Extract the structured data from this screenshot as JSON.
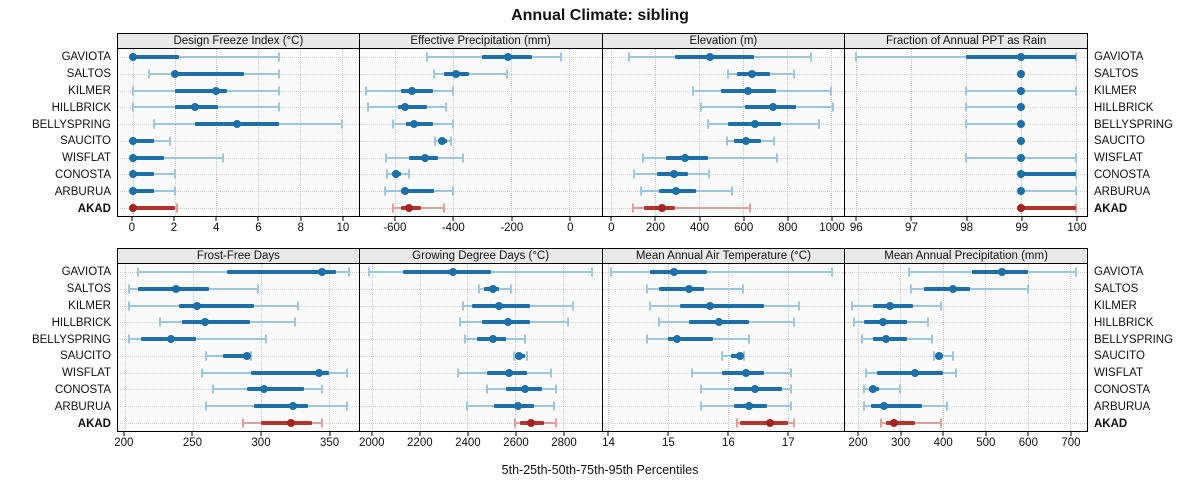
{
  "title": "Annual Climate: sibling",
  "footer": "5th-25th-50th-75th-95th Percentiles",
  "sites": [
    "GAVIOTA",
    "SALTOS",
    "KILMER",
    "HILLBRICK",
    "BELLYSPRING",
    "SAUCITO",
    "WISFLAT",
    "CONOSTA",
    "ARBURUA",
    "AKAD"
  ],
  "highlight_site": "AKAD",
  "colors": {
    "blue": "#1d6fa8",
    "blue_light": "#9cc6e2",
    "red": "#b5332d",
    "red_light": "#dfa09c",
    "red_dot": "#a32521",
    "grid": "#c9c9c9",
    "panel_bg": "#fafafa",
    "header_bg": "#e9e9e9",
    "border": "#000000"
  },
  "percentile_order": [
    "p5",
    "p25",
    "p50",
    "p75",
    "p95"
  ],
  "chart_data": [
    {
      "type": "dot-whisker",
      "title": "Design Freeze Index (°C)",
      "row": 0,
      "ticks": [
        0,
        2,
        4,
        6,
        8,
        10
      ],
      "xmin": -0.7,
      "xmax": 10.8,
      "values": {
        "GAVIOTA": [
          0,
          0,
          0,
          2.2,
          7
        ],
        "SALTOS": [
          0.8,
          1.9,
          2,
          5.3,
          7
        ],
        "KILMER": [
          0,
          2,
          4,
          4.5,
          7
        ],
        "HILLBRICK": [
          0,
          2,
          3,
          4.1,
          7
        ],
        "BELLYSPRING": [
          1,
          3,
          5,
          7,
          10
        ],
        "SAUCITO": [
          0,
          0,
          0,
          1,
          1.8
        ],
        "WISFLAT": [
          0,
          0,
          0,
          1.5,
          4.3
        ],
        "CONOSTA": [
          0,
          0,
          0,
          1,
          2
        ],
        "ARBURUA": [
          0,
          0,
          0,
          1,
          2
        ],
        "AKAD": [
          0,
          0,
          0,
          2,
          2.1
        ]
      }
    },
    {
      "type": "dot-whisker",
      "title": "Effective Precipitation (mm)",
      "row": 0,
      "ticks": [
        -600,
        -400,
        -200,
        0
      ],
      "xmin": -720,
      "xmax": 110,
      "values": {
        "GAVIOTA": [
          -490,
          -300,
          -210,
          -130,
          -30
        ],
        "SALTOS": [
          -465,
          -430,
          -390,
          -345,
          -215
        ],
        "KILMER": [
          -700,
          -580,
          -540,
          -470,
          -400
        ],
        "HILLBRICK": [
          -690,
          -590,
          -565,
          -490,
          -425
        ],
        "BELLYSPRING": [
          -605,
          -560,
          -535,
          -470,
          -400
        ],
        "SAUCITO": [
          -460,
          -448,
          -437,
          -420,
          -405
        ],
        "WISFLAT": [
          -630,
          -550,
          -495,
          -450,
          -365
        ],
        "CONOSTA": [
          -625,
          -610,
          -595,
          -580,
          -550
        ],
        "ARBURUA": [
          -635,
          -580,
          -565,
          -465,
          -400
        ],
        "AKAD": [
          -605,
          -580,
          -550,
          -510,
          -430
        ]
      }
    },
    {
      "type": "dot-whisker",
      "title": "Elevation (m)",
      "row": 0,
      "ticks": [
        0,
        200,
        400,
        600,
        800,
        1000
      ],
      "xmin": -40,
      "xmax": 1060,
      "values": {
        "GAVIOTA": [
          80,
          290,
          450,
          650,
          910
        ],
        "SALTOS": [
          530,
          570,
          640,
          720,
          830
        ],
        "KILMER": [
          370,
          500,
          620,
          750,
          1000
        ],
        "HILLBRICK": [
          410,
          610,
          735,
          840,
          1010
        ],
        "BELLYSPRING": [
          440,
          530,
          655,
          770,
          945
        ],
        "SAUCITO": [
          525,
          560,
          615,
          680,
          740
        ],
        "WISFLAT": [
          145,
          250,
          335,
          440,
          755
        ],
        "CONOSTA": [
          105,
          210,
          285,
          350,
          445
        ],
        "ARBURUA": [
          135,
          215,
          295,
          385,
          550
        ],
        "AKAD": [
          100,
          150,
          230,
          290,
          630
        ]
      }
    },
    {
      "type": "dot-whisker",
      "title": "Fraction of Annual PPT as Rain",
      "row": 0,
      "ticks": [
        96,
        97,
        98,
        99,
        100
      ],
      "xmin": 95.8,
      "xmax": 100.2,
      "values": {
        "GAVIOTA": [
          96,
          98,
          99,
          100,
          100
        ],
        "SALTOS": [
          99,
          99,
          99,
          99,
          99
        ],
        "KILMER": [
          98,
          99,
          99,
          99,
          100
        ],
        "HILLBRICK": [
          98,
          99,
          99,
          99,
          99
        ],
        "BELLYSPRING": [
          98,
          99,
          99,
          99,
          99
        ],
        "SAUCITO": [
          99,
          99,
          99,
          99,
          99
        ],
        "WISFLAT": [
          98,
          99,
          99,
          99,
          100
        ],
        "CONOSTA": [
          99,
          99,
          99,
          100,
          100
        ],
        "ARBURUA": [
          99,
          99,
          99,
          99,
          100
        ],
        "AKAD": [
          99,
          99,
          99,
          100,
          100
        ]
      }
    },
    {
      "type": "dot-whisker",
      "title": "Frost-Free Days",
      "row": 1,
      "ticks": [
        200,
        250,
        300,
        350
      ],
      "xmin": 195,
      "xmax": 372,
      "values": {
        "GAVIOTA": [
          210,
          275,
          345,
          355,
          365
        ],
        "SALTOS": [
          203,
          210,
          238,
          262,
          298
        ],
        "KILMER": [
          203,
          240,
          253,
          295,
          327
        ],
        "HILLBRICK": [
          226,
          242,
          259,
          292,
          325
        ],
        "BELLYSPRING": [
          203,
          212,
          234,
          252,
          304
        ],
        "SAUCITO": [
          260,
          272,
          290,
          292,
          293
        ],
        "WISFLAT": [
          257,
          293,
          343,
          350,
          363
        ],
        "CONOSTA": [
          265,
          290,
          302,
          332,
          345
        ],
        "ARBURUA": [
          260,
          295,
          324,
          335,
          363
        ],
        "AKAD": [
          287,
          300,
          322,
          338,
          345
        ]
      }
    },
    {
      "type": "dot-whisker",
      "title": "Growing Degree Days (°C)",
      "row": 1,
      "ticks": [
        2000,
        2200,
        2400,
        2600,
        2800
      ],
      "xmin": 1950,
      "xmax": 2960,
      "values": {
        "GAVIOTA": [
          1990,
          2130,
          2340,
          2500,
          2920
        ],
        "SALTOS": [
          2450,
          2470,
          2505,
          2530,
          2580
        ],
        "KILMER": [
          2380,
          2420,
          2530,
          2660,
          2840
        ],
        "HILLBRICK": [
          2370,
          2460,
          2570,
          2660,
          2820
        ],
        "BELLYSPRING": [
          2390,
          2440,
          2505,
          2560,
          2640
        ],
        "SAUCITO": [
          2595,
          2600,
          2615,
          2640,
          2650
        ],
        "WISFLAT": [
          2360,
          2480,
          2575,
          2650,
          2750
        ],
        "CONOSTA": [
          2480,
          2560,
          2640,
          2710,
          2770
        ],
        "ARBURUA": [
          2400,
          2510,
          2610,
          2680,
          2760
        ],
        "AKAD": [
          2600,
          2620,
          2665,
          2720,
          2770
        ]
      }
    },
    {
      "type": "dot-whisker",
      "title": "Mean Annual Air Temperature (°C)",
      "row": 1,
      "ticks": [
        14,
        15,
        16,
        17
      ],
      "xmin": 13.9,
      "xmax": 17.95,
      "values": {
        "GAVIOTA": [
          14.05,
          14.7,
          15.1,
          15.65,
          17.75
        ],
        "SALTOS": [
          14.65,
          14.85,
          15.35,
          15.6,
          16.25
        ],
        "KILMER": [
          14.7,
          15.2,
          15.7,
          16.6,
          17.2
        ],
        "HILLBRICK": [
          14.85,
          15.35,
          15.85,
          16.35,
          17.1
        ],
        "BELLYSPRING": [
          14.65,
          15.0,
          15.15,
          15.75,
          16.35
        ],
        "SAUCITO": [
          15.9,
          16.05,
          16.2,
          16.25,
          16.27
        ],
        "WISFLAT": [
          15.4,
          15.9,
          16.3,
          16.6,
          17.05
        ],
        "CONOSTA": [
          15.55,
          16.1,
          16.45,
          16.9,
          17.05
        ],
        "ARBURUA": [
          15.55,
          16.1,
          16.35,
          16.65,
          17.05
        ],
        "AKAD": [
          16.15,
          16.2,
          16.7,
          17.0,
          17.1
        ]
      }
    },
    {
      "type": "dot-whisker",
      "title": "Mean Annual Precipitation (mm)",
      "row": 1,
      "ticks": [
        200,
        300,
        400,
        500,
        600,
        700
      ],
      "xmin": 170,
      "xmax": 740,
      "values": {
        "GAVIOTA": [
          320,
          470,
          540,
          600,
          715
        ],
        "SALTOS": [
          325,
          355,
          425,
          465,
          600
        ],
        "KILMER": [
          185,
          235,
          275,
          330,
          395
        ],
        "HILLBRICK": [
          190,
          215,
          260,
          315,
          365
        ],
        "BELLYSPRING": [
          210,
          235,
          265,
          315,
          375
        ],
        "SAUCITO": [
          380,
          385,
          390,
          400,
          425
        ],
        "WISFLAT": [
          220,
          245,
          335,
          400,
          430
        ],
        "CONOSTA": [
          215,
          225,
          235,
          250,
          300
        ],
        "ARBURUA": [
          215,
          230,
          262,
          350,
          410
        ],
        "AKAD": [
          255,
          265,
          285,
          335,
          395
        ]
      }
    }
  ]
}
